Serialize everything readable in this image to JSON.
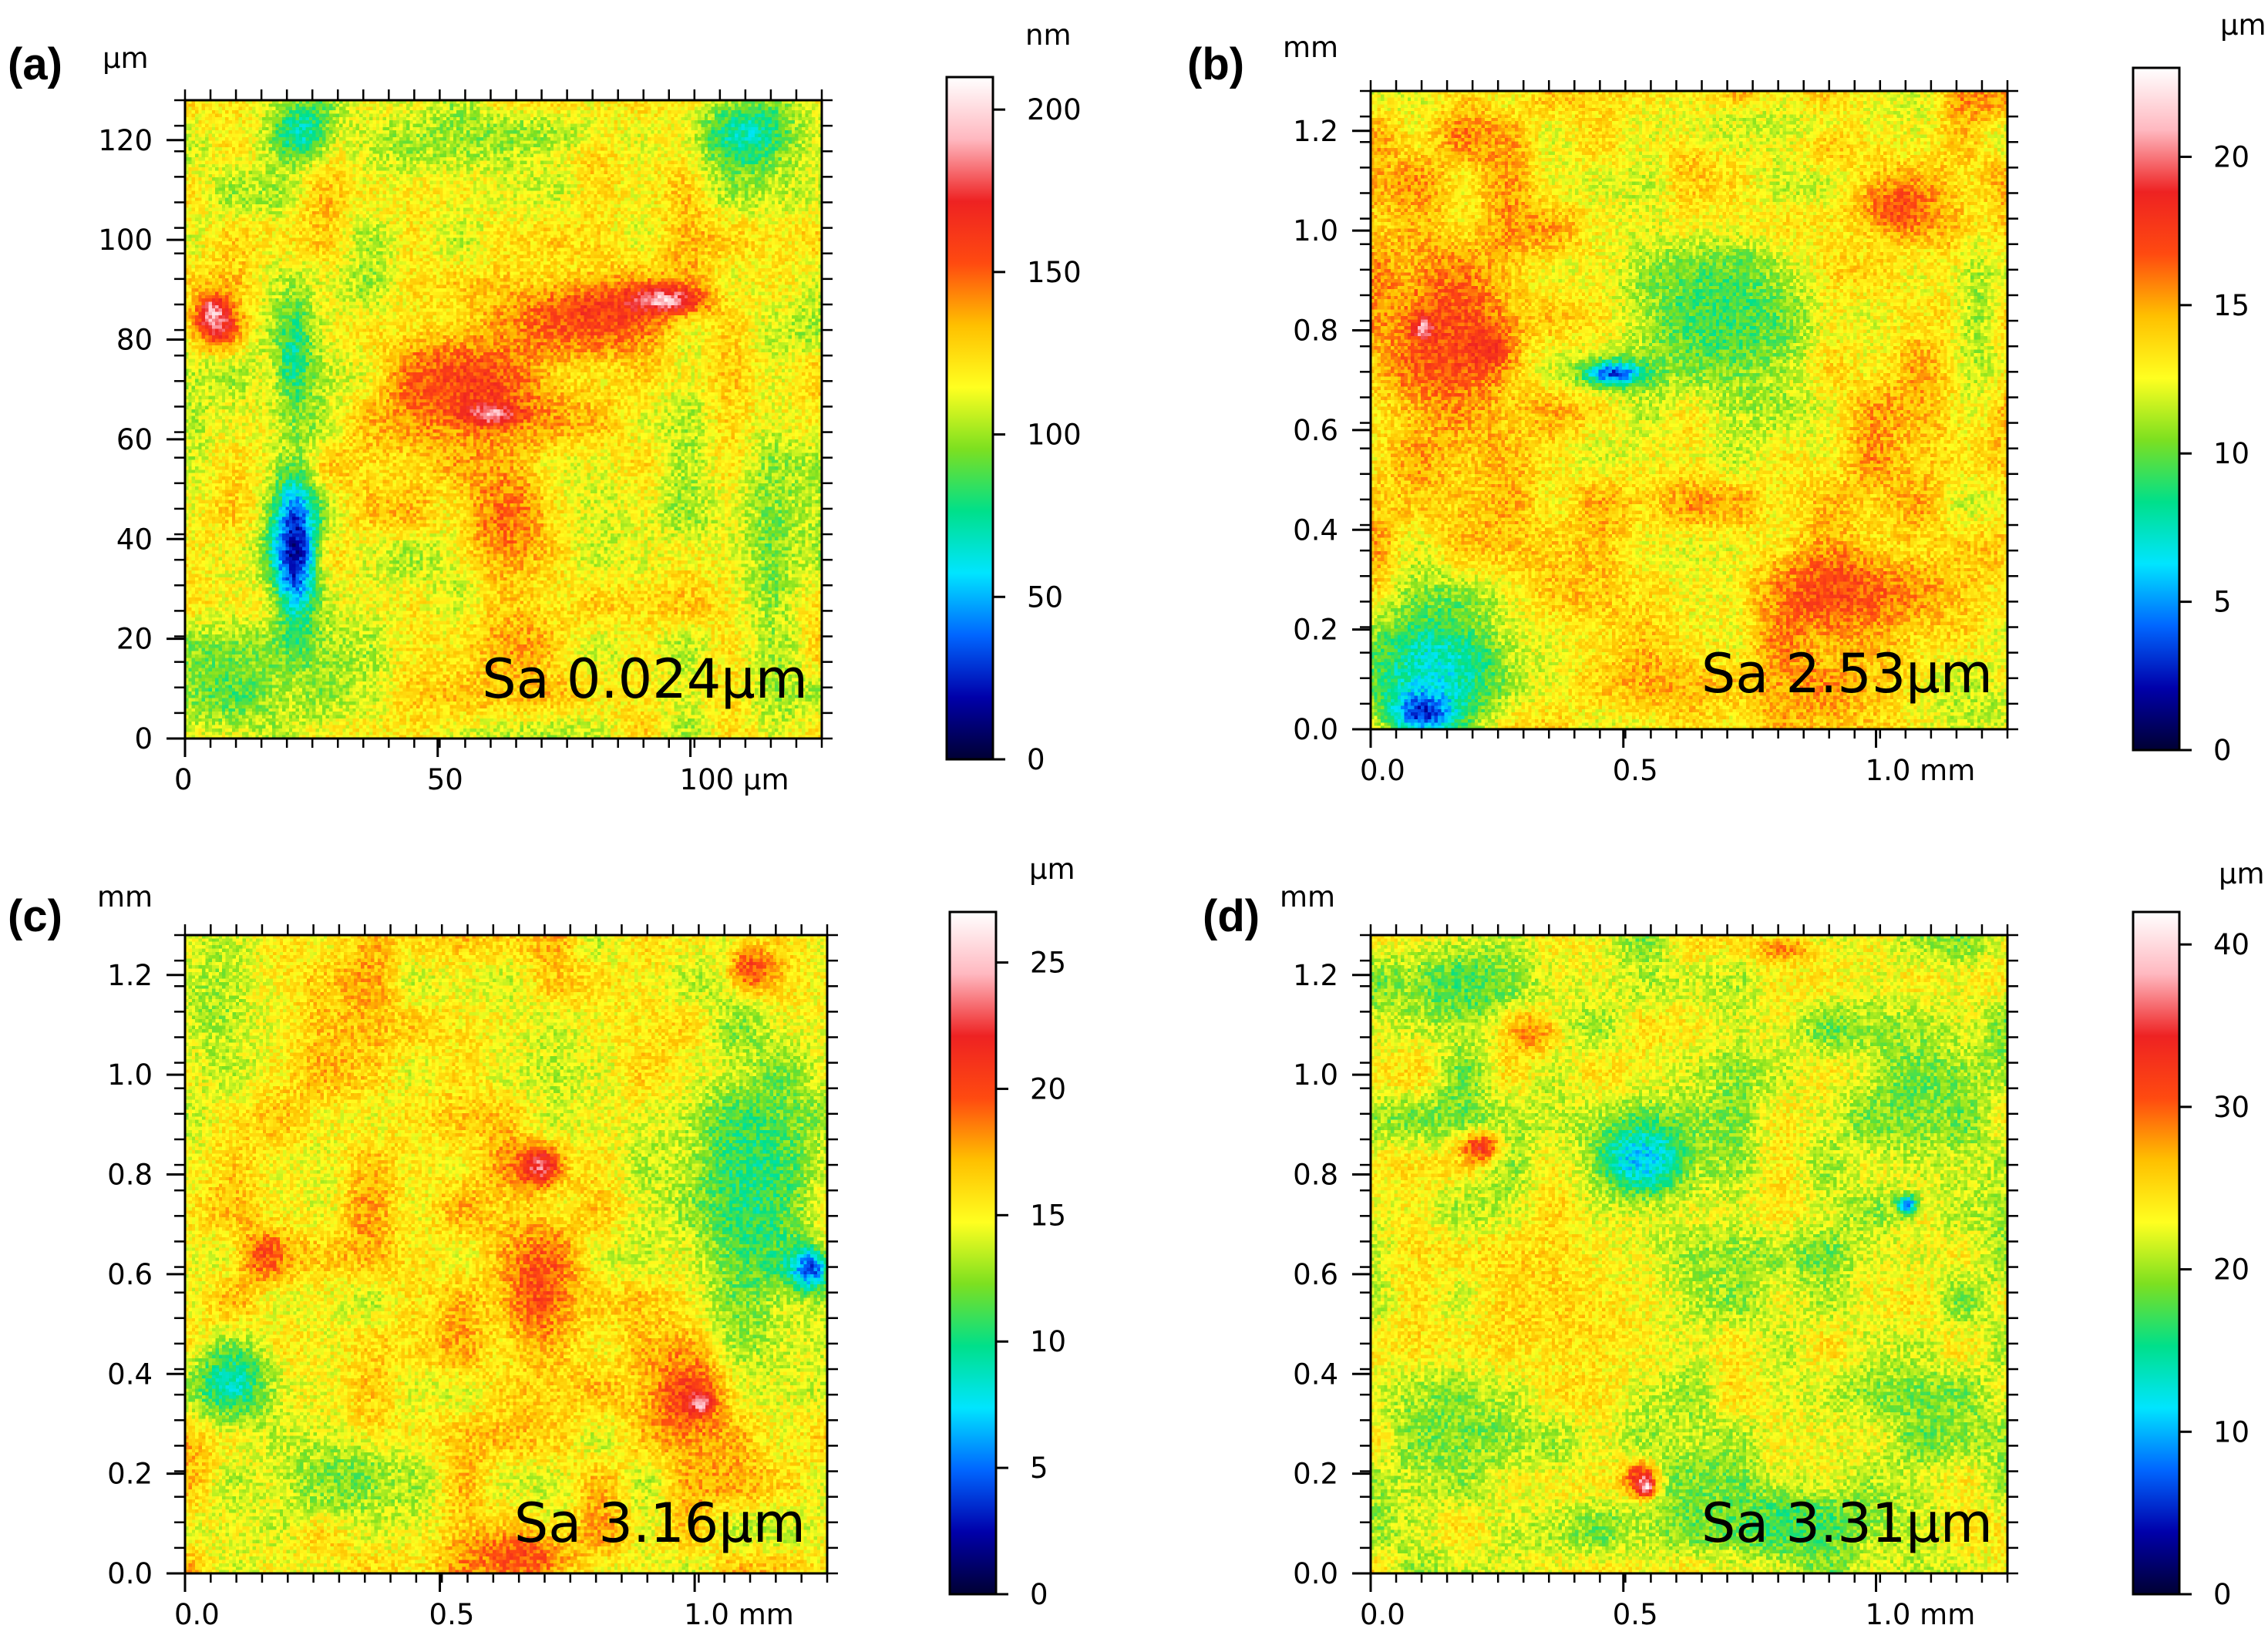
{
  "figure": {
    "description_free": true
  },
  "colors": {
    "colormap": [
      "#000033",
      "#0000aa",
      "#0066ff",
      "#00e5ff",
      "#00e08a",
      "#7de020",
      "#ffff20",
      "#ffc000",
      "#ff4a10",
      "#ee2222",
      "#ffb8c0",
      "#ffffff"
    ],
    "axis": "#000000"
  },
  "chart_data": [
    {
      "type": "heatmap",
      "panel_label": "(a)",
      "x_unit": "μm",
      "y_unit": "μm",
      "colorbar_unit": "nm",
      "xlim": [
        0,
        126
      ],
      "ylim": [
        0,
        128
      ],
      "x_ticks": [
        0,
        50,
        100
      ],
      "x_tick_labels": [
        "0",
        "50",
        "100 μm"
      ],
      "y_ticks": [
        0,
        20,
        40,
        60,
        80,
        100,
        120
      ],
      "y_tick_labels": [
        "0",
        "20",
        "40",
        "60",
        "80",
        "100",
        "120"
      ],
      "colorbar_range": [
        0,
        210
      ],
      "colorbar_ticks": [
        0,
        50,
        100,
        150,
        200
      ],
      "colorbar_tick_labels": [
        "0",
        "50",
        "100",
        "150",
        "200"
      ],
      "annotation": "Sa 0.024μm",
      "base_level": 0.55,
      "features": [
        {
          "x": 0.17,
          "y": 0.7,
          "rx": 0.045,
          "ry": 0.15,
          "level": 0.08
        },
        {
          "x": 0.17,
          "y": 0.4,
          "rx": 0.04,
          "ry": 0.12,
          "level": 0.35
        },
        {
          "x": 0.18,
          "y": 0.05,
          "rx": 0.06,
          "ry": 0.06,
          "level": 0.32
        },
        {
          "x": 0.88,
          "y": 0.05,
          "rx": 0.1,
          "ry": 0.08,
          "level": 0.33
        },
        {
          "x": 0.07,
          "y": 0.92,
          "rx": 0.12,
          "ry": 0.1,
          "level": 0.42
        },
        {
          "x": 0.05,
          "y": 0.35,
          "rx": 0.05,
          "ry": 0.05,
          "level": 0.82
        },
        {
          "x": 0.04,
          "y": 0.33,
          "rx": 0.025,
          "ry": 0.03,
          "level": 0.93
        },
        {
          "x": 0.45,
          "y": 0.45,
          "rx": 0.18,
          "ry": 0.13,
          "level": 0.76
        },
        {
          "x": 0.65,
          "y": 0.33,
          "rx": 0.18,
          "ry": 0.08,
          "level": 0.76
        },
        {
          "x": 0.75,
          "y": 0.31,
          "rx": 0.07,
          "ry": 0.025,
          "level": 0.93
        },
        {
          "x": 0.48,
          "y": 0.49,
          "rx": 0.05,
          "ry": 0.02,
          "level": 0.92
        },
        {
          "x": 0.5,
          "y": 0.65,
          "rx": 0.1,
          "ry": 0.12,
          "level": 0.7
        },
        {
          "x": 0.52,
          "y": 0.85,
          "rx": 0.12,
          "ry": 0.08,
          "level": 0.66
        },
        {
          "x": 0.92,
          "y": 0.7,
          "rx": 0.06,
          "ry": 0.25,
          "level": 0.45
        },
        {
          "x": 0.5,
          "y": 0.05,
          "rx": 0.2,
          "ry": 0.05,
          "level": 0.47
        }
      ]
    },
    {
      "type": "heatmap",
      "panel_label": "(b)",
      "x_unit": "mm",
      "y_unit": "mm",
      "colorbar_unit": "μm",
      "xlim": [
        0,
        1.26
      ],
      "ylim": [
        0,
        1.28
      ],
      "x_ticks": [
        0,
        0.5,
        1.0
      ],
      "x_tick_labels": [
        "0.0",
        "0.5",
        "1.0 mm"
      ],
      "y_ticks": [
        0,
        0.2,
        0.4,
        0.6,
        0.8,
        1.0,
        1.2
      ],
      "y_tick_labels": [
        "0.0",
        "0.2",
        "0.4",
        "0.6",
        "0.8",
        "1.0",
        "1.2"
      ],
      "colorbar_range": [
        0,
        23
      ],
      "colorbar_ticks": [
        0,
        5,
        10,
        15,
        20
      ],
      "colorbar_tick_labels": [
        "0",
        "5",
        "10",
        "15",
        "20"
      ],
      "annotation": "Sa 2.53μm",
      "base_level": 0.6,
      "features": [
        {
          "x": 0.55,
          "y": 0.35,
          "rx": 0.22,
          "ry": 0.2,
          "level": 0.4
        },
        {
          "x": 0.38,
          "y": 0.44,
          "rx": 0.06,
          "ry": 0.025,
          "level": 0.15
        },
        {
          "x": 0.1,
          "y": 0.9,
          "rx": 0.16,
          "ry": 0.14,
          "level": 0.3
        },
        {
          "x": 0.08,
          "y": 0.97,
          "rx": 0.06,
          "ry": 0.04,
          "level": 0.12
        },
        {
          "x": 0.12,
          "y": 0.38,
          "rx": 0.12,
          "ry": 0.18,
          "level": 0.74
        },
        {
          "x": 0.18,
          "y": 0.4,
          "rx": 0.05,
          "ry": 0.05,
          "level": 0.78
        },
        {
          "x": 0.08,
          "y": 0.37,
          "rx": 0.02,
          "ry": 0.02,
          "level": 0.93
        },
        {
          "x": 0.72,
          "y": 0.78,
          "rx": 0.14,
          "ry": 0.1,
          "level": 0.74
        },
        {
          "x": 0.83,
          "y": 0.18,
          "rx": 0.08,
          "ry": 0.06,
          "level": 0.74
        },
        {
          "x": 0.95,
          "y": 0.35,
          "rx": 0.05,
          "ry": 0.2,
          "level": 0.48
        },
        {
          "x": 0.6,
          "y": 0.05,
          "rx": 0.25,
          "ry": 0.05,
          "level": 0.52
        },
        {
          "x": 0.95,
          "y": 0.95,
          "rx": 0.1,
          "ry": 0.08,
          "level": 0.5
        }
      ]
    },
    {
      "type": "heatmap",
      "panel_label": "(c)",
      "x_unit": "mm",
      "y_unit": "mm",
      "colorbar_unit": "μm",
      "xlim": [
        0,
        1.26
      ],
      "ylim": [
        0,
        1.28
      ],
      "x_ticks": [
        0,
        0.5,
        1.0
      ],
      "x_tick_labels": [
        "0.0",
        "0.5",
        "1.0 mm"
      ],
      "y_ticks": [
        0,
        0.2,
        0.4,
        0.6,
        0.8,
        1.0,
        1.2
      ],
      "y_tick_labels": [
        "0.0",
        "0.2",
        "0.4",
        "0.6",
        "0.8",
        "1.0",
        "1.2"
      ],
      "colorbar_range": [
        0,
        27
      ],
      "colorbar_ticks": [
        0,
        5,
        10,
        15,
        20,
        25
      ],
      "colorbar_tick_labels": [
        "0",
        "5",
        "10",
        "15",
        "20",
        "25"
      ],
      "annotation": "Sa 3.16μm",
      "base_level": 0.58,
      "features": [
        {
          "x": 0.88,
          "y": 0.4,
          "rx": 0.14,
          "ry": 0.3,
          "level": 0.38
        },
        {
          "x": 0.97,
          "y": 0.52,
          "rx": 0.04,
          "ry": 0.04,
          "level": 0.15
        },
        {
          "x": 0.07,
          "y": 0.7,
          "rx": 0.08,
          "ry": 0.08,
          "level": 0.32
        },
        {
          "x": 0.05,
          "y": 0.1,
          "rx": 0.1,
          "ry": 0.2,
          "level": 0.48
        },
        {
          "x": 0.25,
          "y": 0.85,
          "rx": 0.15,
          "ry": 0.1,
          "level": 0.45
        },
        {
          "x": 0.55,
          "y": 0.55,
          "rx": 0.08,
          "ry": 0.14,
          "level": 0.74
        },
        {
          "x": 0.55,
          "y": 0.36,
          "rx": 0.04,
          "ry": 0.04,
          "level": 0.86
        },
        {
          "x": 0.78,
          "y": 0.72,
          "rx": 0.08,
          "ry": 0.08,
          "level": 0.76
        },
        {
          "x": 0.8,
          "y": 0.73,
          "rx": 0.02,
          "ry": 0.02,
          "level": 0.92
        },
        {
          "x": 0.12,
          "y": 0.5,
          "rx": 0.05,
          "ry": 0.05,
          "level": 0.74
        },
        {
          "x": 0.52,
          "y": 0.97,
          "rx": 0.1,
          "ry": 0.05,
          "level": 0.74
        },
        {
          "x": 0.88,
          "y": 0.05,
          "rx": 0.05,
          "ry": 0.05,
          "level": 0.74
        }
      ]
    },
    {
      "type": "heatmap",
      "panel_label": "(d)",
      "x_unit": "mm",
      "y_unit": "mm",
      "colorbar_unit": "μm",
      "xlim": [
        0,
        1.26
      ],
      "ylim": [
        0,
        1.28
      ],
      "x_ticks": [
        0,
        0.5,
        1.0
      ],
      "x_tick_labels": [
        "0.0",
        "0.5",
        "1.0 mm"
      ],
      "y_ticks": [
        0,
        0.2,
        0.4,
        0.6,
        0.8,
        1.0,
        1.2
      ],
      "y_tick_labels": [
        "0.0",
        "0.2",
        "0.4",
        "0.6",
        "0.8",
        "1.0",
        "1.2"
      ],
      "colorbar_range": [
        0,
        42
      ],
      "colorbar_ticks": [
        0,
        10,
        20,
        30,
        40
      ],
      "colorbar_tick_labels": [
        "0",
        "10",
        "20",
        "30",
        "40"
      ],
      "annotation": "Sa 3.31μm",
      "base_level": 0.52,
      "features": [
        {
          "x": 0.42,
          "y": 0.35,
          "rx": 0.1,
          "ry": 0.07,
          "level": 0.25
        },
        {
          "x": 0.84,
          "y": 0.42,
          "rx": 0.02,
          "ry": 0.02,
          "level": 0.15
        },
        {
          "x": 0.15,
          "y": 0.08,
          "rx": 0.15,
          "ry": 0.08,
          "level": 0.42
        },
        {
          "x": 0.85,
          "y": 0.25,
          "rx": 0.12,
          "ry": 0.14,
          "level": 0.44
        },
        {
          "x": 0.15,
          "y": 0.75,
          "rx": 0.13,
          "ry": 0.1,
          "level": 0.42
        },
        {
          "x": 0.65,
          "y": 0.92,
          "rx": 0.25,
          "ry": 0.07,
          "level": 0.4
        },
        {
          "x": 0.42,
          "y": 0.85,
          "rx": 0.035,
          "ry": 0.04,
          "level": 0.8
        },
        {
          "x": 0.43,
          "y": 0.86,
          "rx": 0.015,
          "ry": 0.02,
          "level": 0.95
        },
        {
          "x": 0.25,
          "y": 0.15,
          "rx": 0.06,
          "ry": 0.05,
          "level": 0.68
        },
        {
          "x": 0.65,
          "y": 0.02,
          "rx": 0.06,
          "ry": 0.02,
          "level": 0.68
        },
        {
          "x": 0.3,
          "y": 0.6,
          "rx": 0.25,
          "ry": 0.18,
          "level": 0.6
        },
        {
          "x": 0.17,
          "y": 0.33,
          "rx": 0.04,
          "ry": 0.03,
          "level": 0.78
        }
      ]
    }
  ]
}
